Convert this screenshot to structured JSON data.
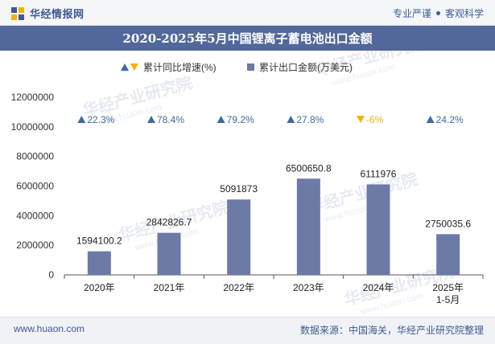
{
  "header": {
    "logo_text": "华经情报网",
    "slogan_left": "专业严谨",
    "slogan_right": "客观科学"
  },
  "title": "2020-2025年5月中国锂离子蓄电池出口金额",
  "footer": {
    "website": "www.huaon.com",
    "source": "数据来源：中国海关，华经产业研究院整理"
  },
  "watermark": "华经产业研究院",
  "watermark_url": "www.huaon.com",
  "colors": {
    "bar": "#6b7ba6",
    "up": "#3d6a9e",
    "down": "#f0b400",
    "axis": "#555555",
    "grid": "#e3e3e3"
  },
  "chart_data": {
    "type": "bar",
    "categories": [
      "2020年",
      "2021年",
      "2022年",
      "2023年",
      "2024年",
      "2025年\n1-5月"
    ],
    "series": [
      {
        "name": "累计出口金额(万美元)",
        "values": [
          1594100.2,
          2842826.7,
          5091873,
          6500650.8,
          6111976,
          2750035.6
        ],
        "labels": [
          "1594100.2",
          "2842826.7",
          "5091873",
          "6500650.8",
          "6111976",
          "2750035.6"
        ]
      },
      {
        "name": "累计同比增速(%)",
        "values": [
          22.3,
          78.4,
          79.2,
          27.8,
          -6,
          24.2
        ],
        "labels": [
          "22.3%",
          "78.4%",
          "79.2%",
          "27.8%",
          "-6%",
          "24.2%"
        ]
      }
    ],
    "legend_position": "top-center",
    "yticks": [
      "0",
      "2000000",
      "4000000",
      "6000000",
      "8000000",
      "10000000",
      "12000000"
    ],
    "ylim": [
      0,
      12000000
    ],
    "grid": false
  }
}
